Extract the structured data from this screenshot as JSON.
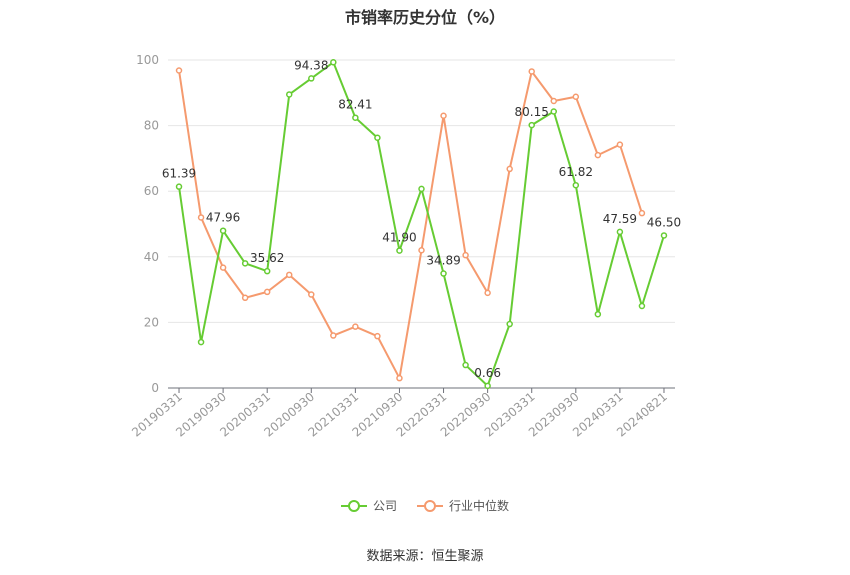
{
  "chart_data": {
    "type": "line",
    "title": "市销率历史分位（%）",
    "xlabel": "",
    "ylabel": "",
    "ylim": [
      0,
      100
    ],
    "yticks": [
      0,
      20,
      40,
      60,
      80,
      100
    ],
    "grid": true,
    "legend_position": "bottom",
    "x": [
      "20190331",
      "20190630",
      "20190930",
      "20191231",
      "20200331",
      "20200630",
      "20200930",
      "20201231",
      "20210331",
      "20210630",
      "20210930",
      "20211231",
      "20220331",
      "20220630",
      "20220930",
      "20221231",
      "20230331",
      "20230630",
      "20230930",
      "20231231",
      "20240331",
      "20240630",
      "20240821"
    ],
    "x_tick_labels": [
      "20190331",
      "20190930",
      "20200331",
      "20200930",
      "20210331",
      "20210930",
      "20220331",
      "20220930",
      "20230331",
      "20230930",
      "20240331",
      "20240821"
    ],
    "series": [
      {
        "name": "公司",
        "color": "#66cc33",
        "values": [
          61.39,
          14,
          47.96,
          38,
          35.62,
          89.5,
          94.38,
          99.3,
          82.41,
          76.3,
          41.9,
          60.7,
          34.89,
          7,
          0.66,
          19.5,
          80.15,
          84.3,
          61.82,
          22.5,
          47.59,
          25,
          46.5
        ],
        "labels": {
          "0": "61.39",
          "2": "47.96",
          "4": "35.62",
          "6": "94.38",
          "8": "82.41",
          "10": "41.90",
          "12": "34.89",
          "14": "0.66",
          "16": "80.15",
          "18": "61.82",
          "20": "47.59",
          "22": "46.50"
        }
      },
      {
        "name": "行业中位数",
        "color": "#f59a6e",
        "values": [
          96.8,
          52,
          36.7,
          27.5,
          29.3,
          34.5,
          28.5,
          16,
          18.7,
          15.8,
          3,
          42,
          83,
          40.5,
          29,
          66.8,
          96.5,
          87.5,
          88.8,
          71,
          74.2,
          53.3,
          null
        ]
      }
    ]
  },
  "source": "数据来源：恒生聚源"
}
